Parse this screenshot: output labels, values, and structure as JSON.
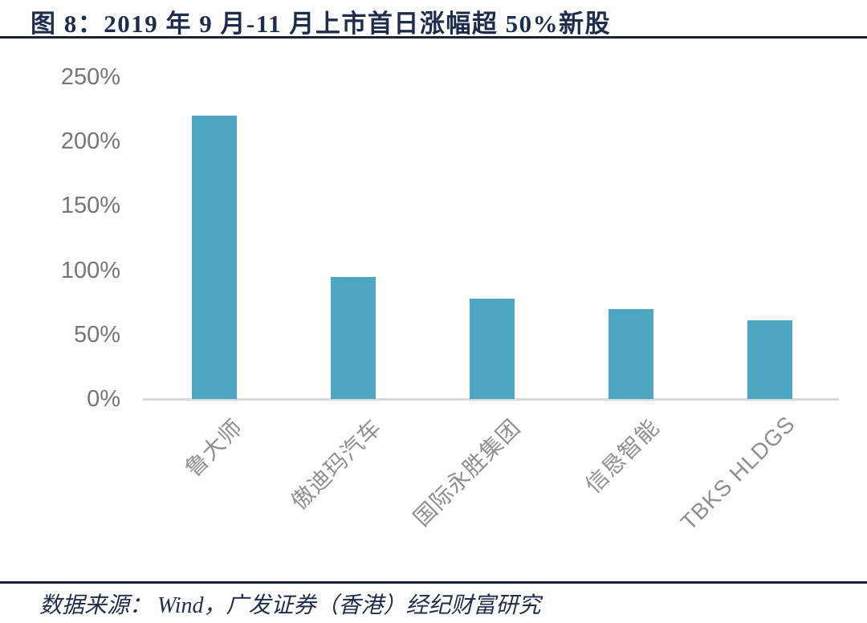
{
  "figure": {
    "title": "图 8：2019 年 9 月-11 月上市首日涨幅超 50%新股",
    "source": "数据来源： Wind，广发证券（香港）经纪财富研究"
  },
  "chart_data": {
    "type": "bar",
    "title": "2019 年 9 月-11 月上市首日涨幅超 50%新股",
    "categories": [
      "鲁大师",
      "傲迪玛汽车",
      "国际永胜集团",
      "信恳智能",
      "TBKS HLDGS"
    ],
    "values": [
      220,
      95,
      78,
      70,
      61
    ],
    "value_unit": "%",
    "xlabel": "",
    "ylabel": "",
    "ylim": [
      0,
      250
    ],
    "yticks": [
      0,
      50,
      100,
      150,
      200,
      250
    ],
    "ytick_labels": [
      "0%",
      "50%",
      "100%",
      "150%",
      "200%",
      "250%"
    ],
    "grid": false,
    "legend": null,
    "bar_color": "#4DA7C3",
    "category_label_rotation_deg": 45
  },
  "colors": {
    "background": "#FFFFFF",
    "title_text": "#1E2D4B",
    "divider_rule": "#1B2435",
    "bar": "#4DA7C3",
    "axis_line": "#D9D9D9",
    "ytick_text": "#757575",
    "xtick_text": "#8F8F8F",
    "source_text": "#1E2D4B"
  }
}
